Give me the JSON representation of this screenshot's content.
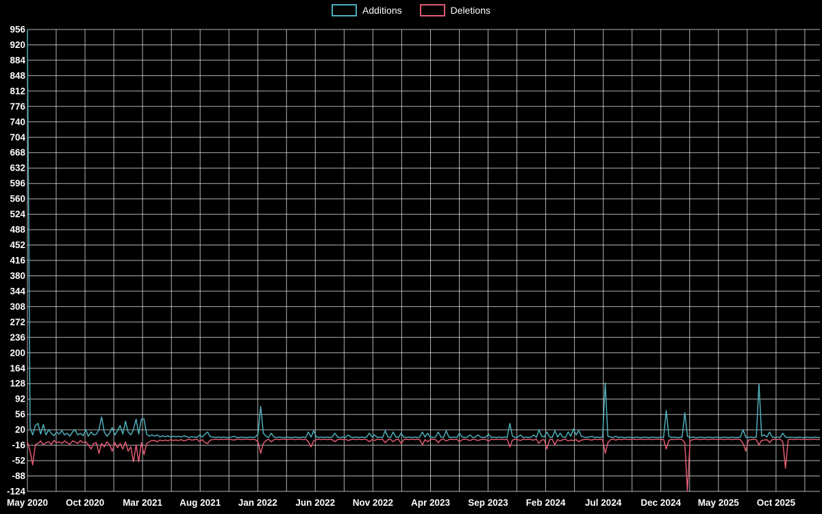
{
  "page": {
    "background": "#000000",
    "text_color": "#ffffff"
  },
  "chart_data": {
    "type": "line",
    "title": "",
    "x_unit": "week",
    "x_start": "May 2020",
    "x_end": "Dec 2025",
    "weeks_per_month": 4.345,
    "x_tick_month_interval": 5,
    "grid_month_interval": 2.5,
    "x_tick_labels": [
      "May 2020",
      "Oct 2020",
      "Mar 2021",
      "Aug 2021",
      "Jan 2022",
      "Jun 2022",
      "Nov 2022",
      "Apr 2023",
      "Sep 2023",
      "Feb 2024",
      "Jul 2024",
      "Dec 2024",
      "May 2025",
      "Oct 2025"
    ],
    "y_ticks": [
      -124,
      -88,
      -52,
      -16,
      20,
      56,
      92,
      128,
      164,
      200,
      236,
      272,
      308,
      344,
      380,
      416,
      452,
      488,
      524,
      560,
      596,
      632,
      668,
      704,
      740,
      776,
      812,
      848,
      884,
      920,
      956
    ],
    "ylim": [
      -124,
      956
    ],
    "grid": true,
    "legend_position": "top-center",
    "colors": {
      "background": "#000000",
      "grid": "#ffffff",
      "text": "#ffffff",
      "additions": "#4fb0bd",
      "deletions": "#e25c72"
    },
    "series": [
      {
        "name": "Additions",
        "values": [
          956,
          25,
          8,
          30,
          35,
          10,
          32,
          8,
          20,
          12,
          6,
          15,
          10,
          18,
          8,
          12,
          5,
          15,
          20,
          8,
          12,
          6,
          20,
          5,
          15,
          8,
          10,
          20,
          50,
          15,
          5,
          12,
          25,
          8,
          18,
          30,
          10,
          40,
          15,
          8,
          20,
          45,
          10,
          45,
          45,
          10,
          5,
          8,
          5,
          8,
          3,
          6,
          4,
          6,
          3,
          5,
          4,
          5,
          3,
          6,
          4,
          2,
          4,
          3,
          2,
          8,
          3,
          10,
          15,
          4,
          3,
          2,
          3,
          2,
          3,
          2,
          2,
          3,
          5,
          2,
          2,
          3,
          2,
          2,
          3,
          2,
          3,
          10,
          75,
          12,
          5,
          2,
          12,
          3,
          2,
          3,
          2,
          2,
          3,
          2,
          2,
          3,
          2,
          2,
          3,
          2,
          15,
          3,
          18,
          3,
          2,
          3,
          2,
          3,
          2,
          3,
          12,
          3,
          2,
          3,
          2,
          8,
          3,
          2,
          3,
          2,
          3,
          2,
          3,
          12,
          3,
          8,
          2,
          3,
          2,
          18,
          3,
          2,
          15,
          3,
          2,
          12,
          3,
          2,
          3,
          2,
          3,
          2,
          3,
          15,
          3,
          12,
          3,
          2,
          3,
          15,
          3,
          2,
          18,
          3,
          2,
          3,
          2,
          12,
          3,
          2,
          3,
          8,
          2,
          3,
          8,
          3,
          2,
          3,
          10,
          2,
          3,
          2,
          3,
          2,
          3,
          2,
          35,
          5,
          2,
          3,
          8,
          2,
          3,
          2,
          3,
          8,
          2,
          20,
          5,
          3,
          15,
          3,
          2,
          18,
          3,
          12,
          3,
          2,
          15,
          5,
          22,
          8,
          18,
          5,
          3,
          2,
          3,
          5,
          2,
          3,
          2,
          3,
          130,
          5,
          3,
          2,
          5,
          2,
          3,
          2,
          2,
          3,
          2,
          2,
          3,
          2,
          2,
          3,
          2,
          2,
          3,
          2,
          2,
          3,
          2,
          65,
          5,
          2,
          3,
          2,
          2,
          3,
          60,
          5,
          2,
          3,
          2,
          2,
          3,
          2,
          2,
          3,
          2,
          2,
          3,
          2,
          2,
          3,
          2,
          2,
          3,
          2,
          2,
          3,
          20,
          3,
          2,
          3,
          2,
          3,
          128,
          5,
          8,
          3,
          15,
          3,
          2,
          3,
          2,
          12,
          3,
          2,
          3,
          2,
          2,
          3,
          2,
          2,
          3,
          2,
          2,
          3,
          2,
          2
        ]
      },
      {
        "name": "Deletions",
        "values": [
          -8,
          -30,
          -62,
          -15,
          -12,
          -6,
          -15,
          -10,
          -8,
          -14,
          -5,
          -10,
          -8,
          -12,
          -6,
          -10,
          -14,
          -6,
          -8,
          -12,
          -5,
          -10,
          -8,
          -15,
          -25,
          -12,
          -10,
          -35,
          -12,
          -20,
          -8,
          -15,
          -30,
          -10,
          -22,
          -12,
          -25,
          -8,
          -30,
          -20,
          -55,
          -15,
          -55,
          -10,
          -38,
          -12,
          -8,
          -5,
          -5,
          -8,
          -4,
          -6,
          -4,
          -6,
          -3,
          -5,
          -4,
          -5,
          -3,
          -6,
          -4,
          -2,
          -4,
          -3,
          -2,
          -8,
          -3,
          -10,
          -12,
          -4,
          -3,
          -2,
          -3,
          -2,
          -3,
          -2,
          -2,
          -3,
          -4,
          -2,
          -2,
          -3,
          -2,
          -2,
          -3,
          -2,
          -3,
          -8,
          -35,
          -12,
          -5,
          -2,
          -8,
          -3,
          -2,
          -3,
          -2,
          -2,
          -3,
          -2,
          -2,
          -3,
          -2,
          -2,
          -3,
          -2,
          -8,
          -20,
          -6,
          -3,
          -2,
          -3,
          -2,
          -3,
          -2,
          -3,
          -8,
          -3,
          -2,
          -3,
          -2,
          -5,
          -3,
          -2,
          -3,
          -2,
          -3,
          -2,
          -3,
          -8,
          -3,
          -5,
          -2,
          -3,
          -2,
          -10,
          -3,
          -2,
          -8,
          -3,
          -2,
          -12,
          -3,
          -2,
          -3,
          -2,
          -3,
          -2,
          -3,
          -15,
          -3,
          -8,
          -3,
          -2,
          -3,
          -10,
          -3,
          -2,
          -6,
          -3,
          -2,
          -3,
          -2,
          -8,
          -3,
          -2,
          -3,
          -5,
          -2,
          -3,
          -5,
          -3,
          -2,
          -3,
          -6,
          -2,
          -3,
          -2,
          -3,
          -2,
          -3,
          -2,
          -20,
          -4,
          -2,
          -3,
          -5,
          -2,
          -3,
          -2,
          -3,
          -4,
          -2,
          -12,
          -4,
          -3,
          -25,
          -3,
          -2,
          -15,
          -3,
          -6,
          -3,
          -2,
          -6,
          -4,
          -5,
          -3,
          -8,
          -4,
          -3,
          -2,
          -3,
          -4,
          -2,
          -3,
          -2,
          -3,
          -35,
          -10,
          -3,
          -2,
          -4,
          -2,
          -3,
          -2,
          -2,
          -3,
          -2,
          -2,
          -3,
          -2,
          -2,
          -3,
          -2,
          -2,
          -3,
          -2,
          -2,
          -3,
          -2,
          -25,
          -5,
          -2,
          -3,
          -2,
          -2,
          -3,
          -10,
          -124,
          -5,
          -3,
          -2,
          -2,
          -3,
          -2,
          -2,
          -3,
          -2,
          -2,
          -3,
          -2,
          -2,
          -3,
          -2,
          -2,
          -3,
          -2,
          -2,
          -3,
          -12,
          -30,
          -4,
          -3,
          -2,
          -3,
          -15,
          -5,
          -4,
          -3,
          -10,
          -3,
          -2,
          -3,
          -2,
          -8,
          -70,
          -3,
          -2,
          -3,
          -2,
          -2,
          -3,
          -2,
          -2,
          -3,
          -2,
          -2,
          -3,
          -2
        ]
      }
    ]
  }
}
